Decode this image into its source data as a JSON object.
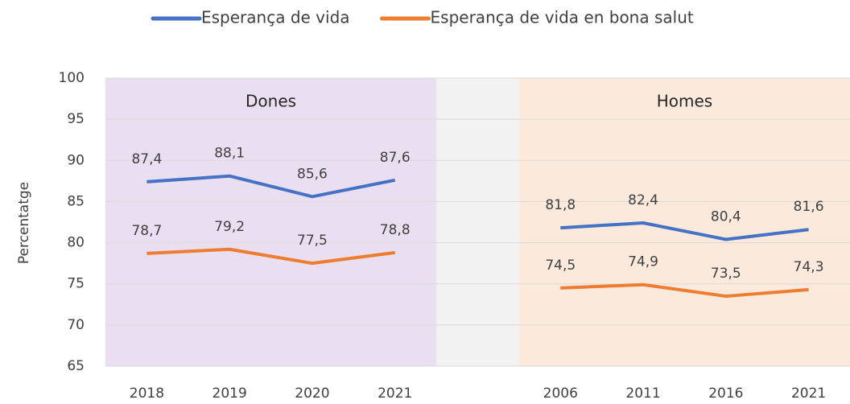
{
  "chart_data": {
    "type": "line",
    "y_label": "Percentatge",
    "categories": [
      "2018",
      "2019",
      "2020",
      "2021",
      null,
      "2006",
      "2011",
      "2016",
      "2021"
    ],
    "series": [
      {
        "name": "Esperança de vida",
        "color": "#4472c4",
        "values": [
          87.4,
          88.1,
          85.6,
          87.6,
          null,
          81.8,
          82.4,
          80.4,
          81.6
        ],
        "value_labels": [
          "87,4",
          "88,1",
          "85,6",
          "87,6",
          null,
          "81,8",
          "82,4",
          "80,4",
          "81,6"
        ]
      },
      {
        "name": "Esperança de vida en bona salut",
        "color": "#ed7d31",
        "values": [
          78.7,
          79.2,
          77.5,
          78.8,
          null,
          74.5,
          74.9,
          73.5,
          74.3
        ],
        "value_labels": [
          "78,7",
          "79,2",
          "77,5",
          "78,8",
          null,
          "74,5",
          "74,9",
          "73,5",
          "74,3"
        ]
      }
    ],
    "annotations": [
      "Dones",
      "Homes"
    ],
    "panel_colors": [
      "#eadff0",
      "#fbeadb"
    ],
    "ylim": [
      65,
      100
    ],
    "yticks": [
      65,
      70,
      75,
      80,
      85,
      90,
      95,
      100
    ],
    "grid": true,
    "legend": "top"
  }
}
